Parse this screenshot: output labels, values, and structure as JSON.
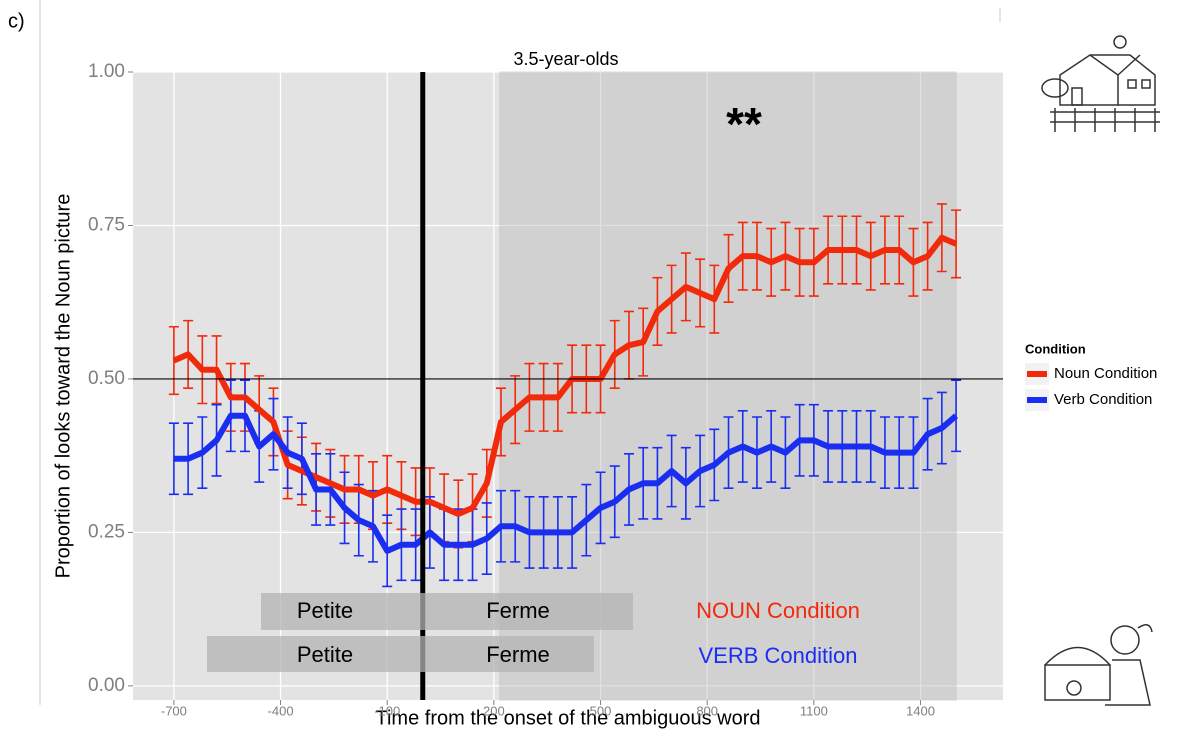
{
  "panel_label": "c)",
  "chart_data": {
    "type": "line",
    "title": "3.5-year-olds",
    "x_label": "Time from the onset of the ambiguous word",
    "y_label": "Proportion of looks toward the Noun picture",
    "x": [
      -700,
      -660,
      -620,
      -580,
      -540,
      -500,
      -460,
      -420,
      -380,
      -340,
      -300,
      -260,
      -220,
      -180,
      -140,
      -100,
      -60,
      -20,
      20,
      60,
      100,
      140,
      180,
      220,
      260,
      300,
      340,
      380,
      420,
      460,
      500,
      540,
      580,
      620,
      660,
      700,
      740,
      780,
      820,
      860,
      900,
      940,
      980,
      1020,
      1060,
      1100,
      1140,
      1180,
      1220,
      1260,
      1300,
      1340,
      1380,
      1420,
      1460,
      1500
    ],
    "series": [
      {
        "name": "Noun Condition",
        "color": "#f22a0c",
        "values": [
          0.53,
          0.54,
          0.515,
          0.515,
          0.47,
          0.47,
          0.45,
          0.43,
          0.36,
          0.35,
          0.34,
          0.33,
          0.32,
          0.32,
          0.31,
          0.32,
          0.31,
          0.3,
          0.3,
          0.29,
          0.28,
          0.29,
          0.33,
          0.43,
          0.45,
          0.47,
          0.47,
          0.47,
          0.5,
          0.5,
          0.5,
          0.54,
          0.555,
          0.56,
          0.61,
          0.63,
          0.65,
          0.64,
          0.63,
          0.68,
          0.7,
          0.7,
          0.69,
          0.7,
          0.69,
          0.69,
          0.71,
          0.71,
          0.71,
          0.7,
          0.71,
          0.71,
          0.69,
          0.7,
          0.73,
          0.72
        ],
        "errors": [
          0.055,
          0.055,
          0.055,
          0.055,
          0.055,
          0.055,
          0.055,
          0.055,
          0.055,
          0.055,
          0.055,
          0.055,
          0.055,
          0.055,
          0.055,
          0.055,
          0.055,
          0.055,
          0.055,
          0.055,
          0.055,
          0.055,
          0.055,
          0.055,
          0.055,
          0.055,
          0.055,
          0.055,
          0.055,
          0.055,
          0.055,
          0.055,
          0.055,
          0.055,
          0.055,
          0.055,
          0.055,
          0.055,
          0.055,
          0.055,
          0.055,
          0.055,
          0.055,
          0.055,
          0.055,
          0.055,
          0.055,
          0.055,
          0.055,
          0.055,
          0.055,
          0.055,
          0.055,
          0.055,
          0.055,
          0.055
        ]
      },
      {
        "name": "Verb Condition",
        "color": "#1a2ef2",
        "values": [
          0.37,
          0.37,
          0.38,
          0.4,
          0.44,
          0.44,
          0.39,
          0.41,
          0.38,
          0.37,
          0.32,
          0.32,
          0.29,
          0.27,
          0.26,
          0.22,
          0.23,
          0.23,
          0.25,
          0.23,
          0.23,
          0.23,
          0.24,
          0.26,
          0.26,
          0.25,
          0.25,
          0.25,
          0.25,
          0.27,
          0.29,
          0.3,
          0.32,
          0.33,
          0.33,
          0.35,
          0.33,
          0.35,
          0.36,
          0.38,
          0.39,
          0.38,
          0.39,
          0.38,
          0.4,
          0.4,
          0.39,
          0.39,
          0.39,
          0.39,
          0.38,
          0.38,
          0.38,
          0.41,
          0.42,
          0.44
        ],
        "errors": [
          0.058,
          0.058,
          0.058,
          0.058,
          0.058,
          0.058,
          0.058,
          0.058,
          0.058,
          0.058,
          0.058,
          0.058,
          0.058,
          0.058,
          0.058,
          0.058,
          0.058,
          0.058,
          0.058,
          0.058,
          0.058,
          0.058,
          0.058,
          0.058,
          0.058,
          0.058,
          0.058,
          0.058,
          0.058,
          0.058,
          0.058,
          0.058,
          0.058,
          0.058,
          0.058,
          0.058,
          0.058,
          0.058,
          0.058,
          0.058,
          0.058,
          0.058,
          0.058,
          0.058,
          0.058,
          0.058,
          0.058,
          0.058,
          0.058,
          0.058,
          0.058,
          0.058,
          0.058,
          0.058,
          0.058,
          0.058
        ]
      }
    ],
    "xlim": [
      -815,
      1632
    ],
    "ylim": [
      -0.023,
      1.0
    ],
    "xticks": [
      -700,
      -400,
      -100,
      200,
      500,
      800,
      1100,
      1400
    ],
    "yticks": [
      {
        "value": 0,
        "label": "0.00"
      },
      {
        "value": 0.25,
        "label": "0.25"
      },
      {
        "value": 0.5,
        "label": "0.50"
      },
      {
        "value": 0.75,
        "label": "0.75"
      },
      {
        "value": 1,
        "label": "1.00"
      }
    ],
    "grid": true,
    "hline": 0.5,
    "vline": 0,
    "highlight_x": [
      217,
      1500
    ],
    "legend_title": "Condition",
    "legend_position": "right",
    "annotations": {
      "stars": "**",
      "noun_label": "NOUN Condition",
      "verb_label": "VERB Condition",
      "noun_words": [
        "Petite",
        "Ferme"
      ],
      "verb_words": [
        "Petite",
        "Ferme"
      ]
    }
  }
}
